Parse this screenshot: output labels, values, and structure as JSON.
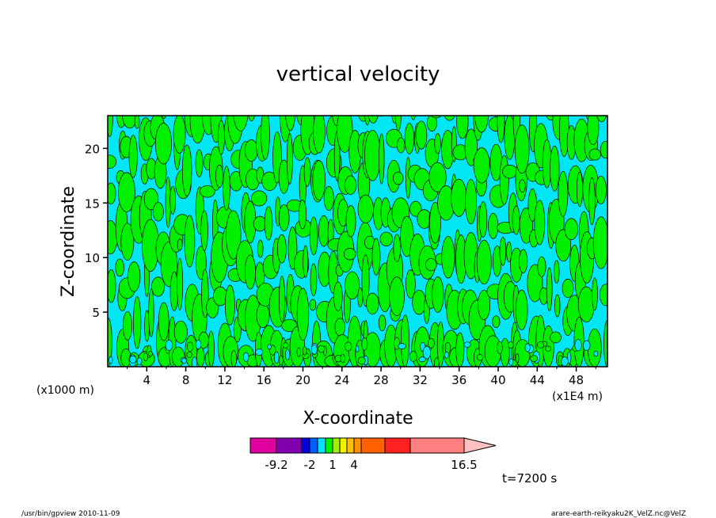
{
  "chart_data": {
    "type": "heatmap",
    "title": "vertical velocity",
    "xlabel": "X-coordinate",
    "ylabel": "Z-coordinate",
    "x_unit_left": "(x1000 m)",
    "x_unit_right": "(x1E4 m)",
    "x_ticks": [
      "4",
      "8",
      "12",
      "16",
      "20",
      "24",
      "28",
      "32",
      "36",
      "40",
      "44",
      "48"
    ],
    "y_ticks": [
      "5",
      "10",
      "15",
      "20"
    ],
    "xlim": [
      0,
      51.2
    ],
    "ylim": [
      0,
      23
    ],
    "time_label": "t=7200 s",
    "colorbar": {
      "colors": [
        "#e000a0",
        "#8000b0",
        "#0000e0",
        "#0060ff",
        "#00e0ff",
        "#00f000",
        "#a0f000",
        "#f0f000",
        "#ffc000",
        "#ff9000",
        "#ff6000",
        "#ff2020",
        "#ff8080"
      ],
      "tick_labels": [
        "-9.2",
        "-2",
        "1",
        "4",
        "16.5"
      ],
      "extend": "max"
    },
    "dominant_levels": [
      {
        "color": "#00e0ff",
        "range": "-2 to 0"
      },
      {
        "color": "#00f000",
        "range": "0 to 1"
      }
    ]
  },
  "footer": {
    "left": "/usr/bin/gpview  2010-11-09",
    "right": "arare-earth-reikyaku2K_VelZ.nc@VelZ"
  }
}
